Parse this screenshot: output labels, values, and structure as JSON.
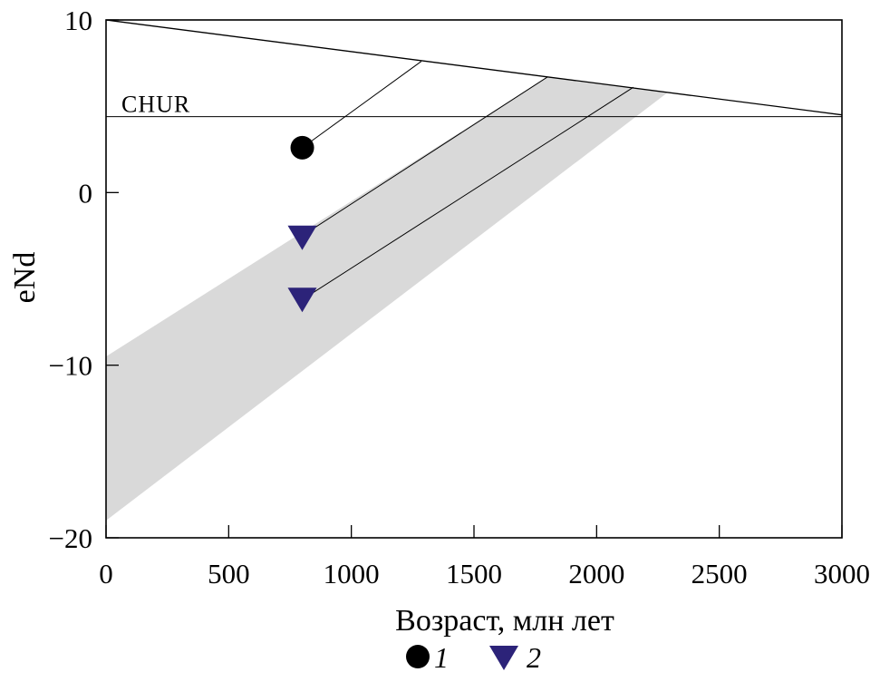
{
  "chart_data": {
    "type": "scatter",
    "title": "",
    "xlabel": "Возраст, млн лет",
    "ylabel": "eNd",
    "xlim": [
      0,
      3000
    ],
    "ylim": [
      -20,
      10
    ],
    "x_ticks": [
      0,
      500,
      1000,
      1500,
      2000,
      2500,
      3000
    ],
    "y_ticks": [
      10,
      0,
      -10,
      -20
    ],
    "x_tick_labels": [
      "0",
      "500",
      "1000",
      "1500",
      "2000",
      "2500",
      "3000"
    ],
    "y_tick_labels": [
      "10",
      "0",
      "−10",
      "−20"
    ],
    "grid": false,
    "depleted_mantle_line": {
      "x": [
        0,
        3000
      ],
      "y": [
        10.0,
        4.5
      ]
    },
    "chur": {
      "label": "CHUR",
      "y": 4.4,
      "x": [
        0,
        3000
      ]
    },
    "shaded_band": {
      "color": "#d9d9d9",
      "polygon": [
        [
          0,
          -9.5
        ],
        [
          1800,
          6.7
        ],
        [
          2290,
          5.8
        ],
        [
          0,
          -19.0
        ]
      ]
    },
    "evolution_lines": [
      {
        "x": [
          800,
          1285
        ],
        "y": [
          2.6,
          7.6
        ]
      },
      {
        "x": [
          800,
          1800
        ],
        "y": [
          -2.5,
          6.7
        ]
      },
      {
        "x": [
          800,
          2150
        ],
        "y": [
          -6.2,
          6.1
        ]
      }
    ],
    "series": [
      {
        "name": "1",
        "marker": "circle",
        "color": "#000000",
        "points": [
          {
            "x": 800,
            "y": 2.6
          }
        ]
      },
      {
        "name": "2",
        "marker": "triangle-down",
        "color": "#2c2379",
        "points": [
          {
            "x": 800,
            "y": -2.6
          },
          {
            "x": 800,
            "y": -6.2
          }
        ]
      }
    ],
    "legend": {
      "placement": "bottom-center"
    }
  }
}
